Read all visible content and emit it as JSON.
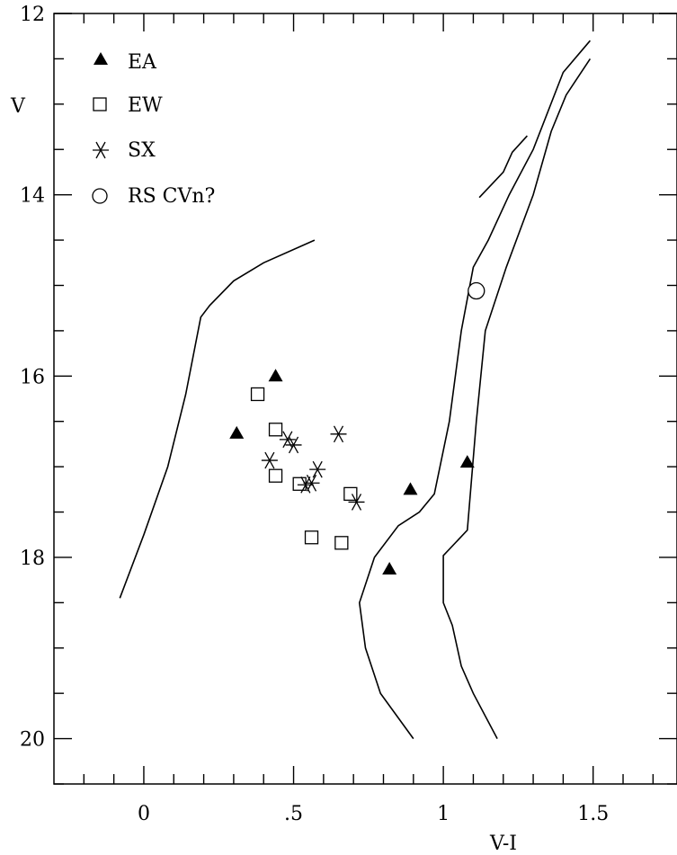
{
  "chart_data": {
    "type": "scatter",
    "title": "",
    "xlabel": "V-I",
    "ylabel": "V",
    "xlim": [
      -0.3,
      1.78
    ],
    "ylim": [
      20.5,
      12.0
    ],
    "y_inverted": true,
    "grid": false,
    "legend_position": "top-left",
    "x_ticks": [
      {
        "value": 0,
        "label": "0"
      },
      {
        "value": 0.5,
        "label": ".5"
      },
      {
        "value": 1,
        "label": "1"
      },
      {
        "value": 1.5,
        "label": "1.5"
      }
    ],
    "y_ticks": [
      {
        "value": 12,
        "label": "12"
      },
      {
        "value": 14,
        "label": "14"
      },
      {
        "value": 16,
        "label": "16"
      },
      {
        "value": 18,
        "label": "18"
      },
      {
        "value": 20,
        "label": "20"
      }
    ],
    "x_minor_step": 0.1,
    "y_minor_step": 0.5,
    "series": [
      {
        "name": "EA",
        "marker": "filled-triangle",
        "points": [
          [
            0.44,
            16.0
          ],
          [
            0.31,
            16.63
          ],
          [
            0.89,
            17.25
          ],
          [
            1.08,
            16.95
          ],
          [
            0.82,
            18.13
          ]
        ]
      },
      {
        "name": "EW",
        "marker": "open-square",
        "points": [
          [
            0.38,
            16.2
          ],
          [
            0.44,
            16.59
          ],
          [
            0.44,
            17.1
          ],
          [
            0.52,
            17.19
          ],
          [
            0.69,
            17.3
          ],
          [
            0.56,
            17.78
          ],
          [
            0.66,
            17.84
          ]
        ]
      },
      {
        "name": "SX",
        "marker": "asterisk",
        "points": [
          [
            0.48,
            16.7
          ],
          [
            0.5,
            16.76
          ],
          [
            0.65,
            16.64
          ],
          [
            0.42,
            16.93
          ],
          [
            0.58,
            17.03
          ],
          [
            0.56,
            17.18
          ],
          [
            0.54,
            17.2
          ],
          [
            0.71,
            17.39
          ]
        ]
      },
      {
        "name": "RS CVn?",
        "marker": "open-circle",
        "points": [
          [
            1.11,
            15.06
          ]
        ]
      }
    ],
    "isochrone_lines": [
      [
        [
          -0.08,
          18.45
        ],
        [
          0.0,
          17.75
        ],
        [
          0.08,
          17.0
        ],
        [
          0.14,
          16.2
        ],
        [
          0.19,
          15.35
        ],
        [
          0.22,
          15.22
        ],
        [
          0.3,
          14.95
        ],
        [
          0.4,
          14.75
        ],
        [
          0.57,
          14.5
        ]
      ],
      [
        [
          0.9,
          20.0
        ],
        [
          0.79,
          19.5
        ],
        [
          0.74,
          19.0
        ],
        [
          0.72,
          18.5
        ],
        [
          0.77,
          18.0
        ],
        [
          0.85,
          17.65
        ],
        [
          0.92,
          17.5
        ],
        [
          0.97,
          17.3
        ],
        [
          1.02,
          16.5
        ],
        [
          1.06,
          15.5
        ],
        [
          1.1,
          14.8
        ],
        [
          1.15,
          14.5
        ],
        [
          1.22,
          14.0
        ],
        [
          1.3,
          13.5
        ],
        [
          1.4,
          12.65
        ],
        [
          1.49,
          12.3
        ]
      ],
      [
        [
          1.18,
          20.0
        ],
        [
          1.1,
          19.5
        ],
        [
          1.06,
          19.2
        ],
        [
          1.03,
          18.75
        ],
        [
          1.0,
          18.5
        ],
        [
          1.0,
          17.98
        ],
        [
          1.08,
          17.7
        ],
        [
          1.11,
          16.5
        ],
        [
          1.14,
          15.5
        ],
        [
          1.21,
          14.8
        ],
        [
          1.3,
          14.0
        ],
        [
          1.36,
          13.3
        ],
        [
          1.41,
          12.9
        ],
        [
          1.49,
          12.5
        ]
      ],
      [
        [
          1.12,
          14.03
        ],
        [
          1.2,
          13.75
        ],
        [
          1.23,
          13.53
        ],
        [
          1.28,
          13.35
        ]
      ]
    ]
  }
}
